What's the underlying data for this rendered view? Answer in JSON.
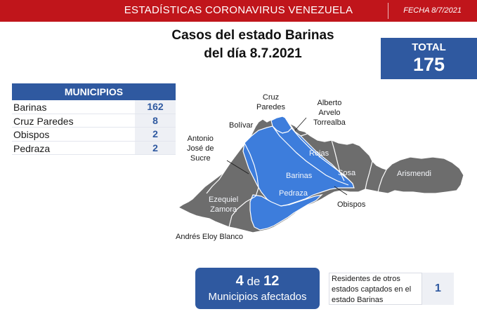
{
  "header": {
    "title": "ESTADÍSTICAS CORONAVIRUS VENEZUELA",
    "date": "FECHA 8/7/2021"
  },
  "page_title": {
    "line1": "Casos del estado Barinas",
    "line2": "del día 8.7.2021"
  },
  "total": {
    "label": "TOTAL",
    "value": "175"
  },
  "municipios": {
    "header": "MUNICIPIOS",
    "rows": [
      {
        "name": "Barinas",
        "value": "162"
      },
      {
        "name": "Cruz Paredes",
        "value": "8"
      },
      {
        "name": "Obispos",
        "value": "2"
      },
      {
        "name": "Pedraza",
        "value": "2"
      }
    ]
  },
  "map": {
    "affected_color": "#3d7ddc",
    "unaffected_color": "#6d6d6d",
    "labels": {
      "cruz_paredes": [
        "Cruz",
        "Paredes"
      ],
      "alberto_arvelo": [
        "Alberto",
        "Arvelo",
        "Torrealba"
      ],
      "bolivar": "Bolívar",
      "antonio_jose_sucre": [
        "Antonio",
        "José de",
        "Sucre"
      ],
      "rojas": "Rojas",
      "barinas": "Barinas",
      "sosa": "Sosa",
      "arismendi": "Arismendi",
      "pedraza": "Pedraza",
      "ezequiel_zamora": [
        "Ezequiel",
        "Zamora"
      ],
      "obispos": "Obispos",
      "andres_eloy_blanco": "Andrés Eloy Blanco"
    }
  },
  "affected": {
    "count": "4",
    "of": "de",
    "total": "12",
    "label": "Municipios afectados"
  },
  "residents": {
    "line1": "Residentes de otros",
    "line2": "estados captados en el",
    "line3": "estado Barinas",
    "value": "1"
  }
}
